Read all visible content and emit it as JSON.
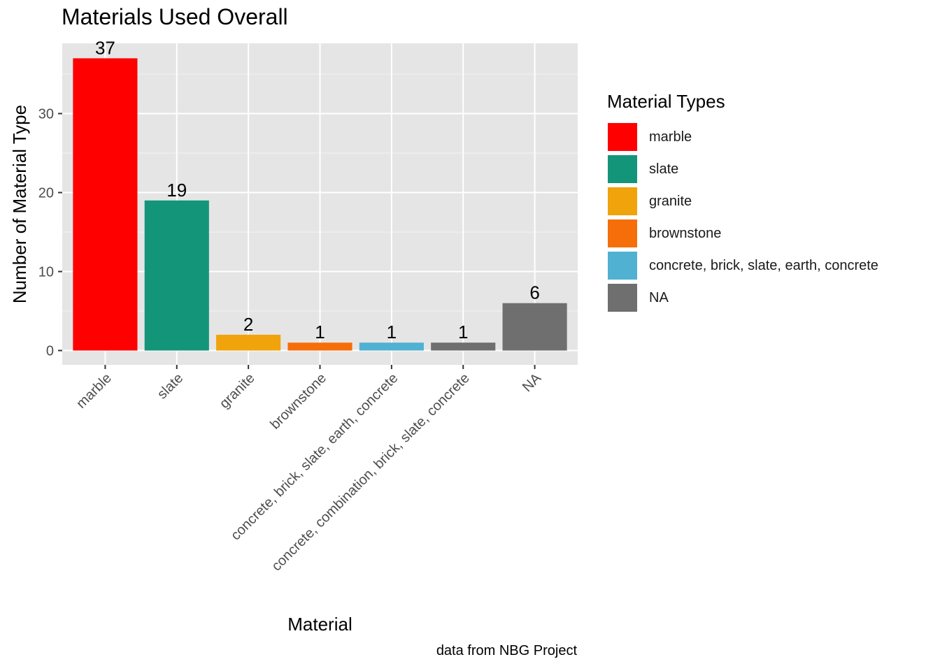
{
  "chart_data": {
    "type": "bar",
    "title": "Materials Used Overall",
    "xlabel": "Material",
    "ylabel": "Number of Material Type",
    "caption": "data from NBG Project",
    "categories": [
      "marble",
      "slate",
      "granite",
      "brownstone",
      "concrete, brick, slate, earth, concrete",
      "concrete, combination, brick, slate, concrete",
      "NA"
    ],
    "values": [
      37,
      19,
      2,
      1,
      1,
      1,
      6
    ],
    "data_labels": [
      "37",
      "19",
      "2",
      "1",
      "1",
      "1",
      "6"
    ],
    "colors": [
      "#ff0000",
      "#13957a",
      "#f0a30a",
      "#f66e0a",
      "#50b1d2",
      "#6f6f6f",
      "#6f6f6f"
    ],
    "ylim": [
      0,
      38.8
    ],
    "yticks": [
      0,
      10,
      20,
      30
    ],
    "grid": true,
    "background": "#e5e5e5",
    "legend": {
      "title": "Material Types",
      "position": "right",
      "items": [
        {
          "label": "marble",
          "color": "#ff0000"
        },
        {
          "label": "slate",
          "color": "#13957a"
        },
        {
          "label": "granite",
          "color": "#f0a30a"
        },
        {
          "label": "brownstone",
          "color": "#f66e0a"
        },
        {
          "label": "concrete, brick, slate, earth, concrete",
          "color": "#50b1d2"
        },
        {
          "label": "NA",
          "color": "#6f6f6f"
        }
      ]
    }
  }
}
